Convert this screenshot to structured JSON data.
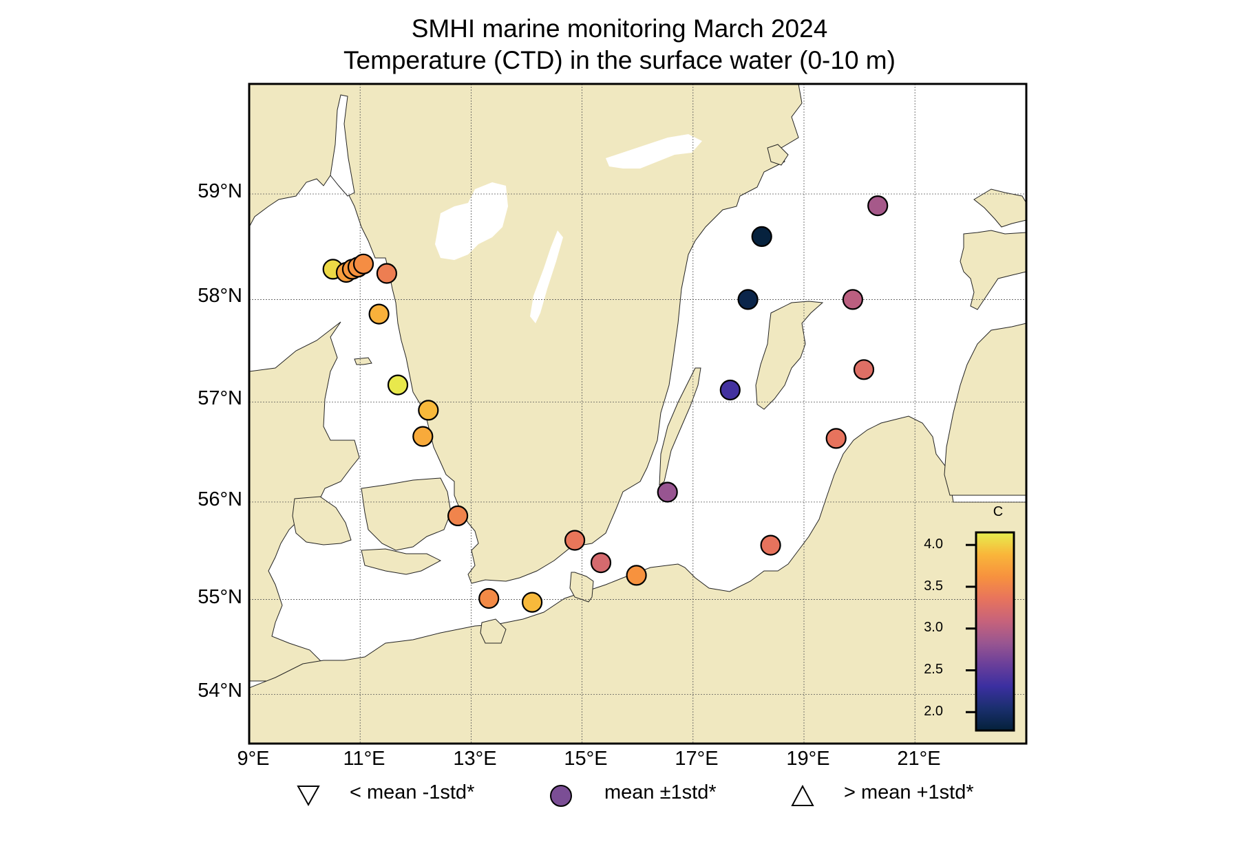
{
  "chart_data": {
    "type": "scatter",
    "title": "SMHI marine monitoring March 2024",
    "subtitle": "Temperature (CTD) in the surface water (0-10 m)",
    "xlabel": "",
    "ylabel": "",
    "xlim": [
      9,
      23.0
    ],
    "ylim": [
      53.6,
      60.0
    ],
    "x_ticks": [
      {
        "value": 9,
        "label": "9°E"
      },
      {
        "value": 11,
        "label": "11°E"
      },
      {
        "value": 13,
        "label": "13°E"
      },
      {
        "value": 15,
        "label": "15°E"
      },
      {
        "value": 17,
        "label": "17°E"
      },
      {
        "value": 19,
        "label": "19°E"
      },
      {
        "value": 21,
        "label": "21°E"
      }
    ],
    "y_ticks": [
      {
        "value": 54,
        "label": "54°N"
      },
      {
        "value": 55,
        "label": "55°N"
      },
      {
        "value": 56,
        "label": "56°N"
      },
      {
        "value": 57,
        "label": "57°N"
      },
      {
        "value": 58,
        "label": "58°N"
      },
      {
        "value": 59,
        "label": "59°N"
      }
    ],
    "grid": true,
    "colorbar": {
      "label": "C",
      "range": [
        1.78,
        4.15
      ],
      "ticks": [
        {
          "value": 4.0,
          "label": "4.0"
        },
        {
          "value": 3.5,
          "label": "3.5"
        },
        {
          "value": 3.0,
          "label": "3.0"
        },
        {
          "value": 2.5,
          "label": "2.5"
        },
        {
          "value": 2.0,
          "label": "2.0"
        }
      ],
      "colormap": [
        "#04213a",
        "#1a2f6e",
        "#3b2fa0",
        "#6a3f9a",
        "#9a5690",
        "#c8637a",
        "#e8745c",
        "#f7923e",
        "#f9b63a",
        "#e6ee4e"
      ]
    },
    "marker_type": "circle",
    "stations": [
      {
        "lon": 10.51,
        "lat": 58.29,
        "value": 4.05
      },
      {
        "lon": 10.75,
        "lat": 58.26,
        "value": 3.72
      },
      {
        "lon": 10.86,
        "lat": 58.29,
        "value": 3.66
      },
      {
        "lon": 10.96,
        "lat": 58.31,
        "value": 3.62
      },
      {
        "lon": 11.06,
        "lat": 58.34,
        "value": 3.58
      },
      {
        "lon": 11.48,
        "lat": 58.25,
        "value": 3.45
      },
      {
        "lon": 11.34,
        "lat": 57.86,
        "value": 3.85
      },
      {
        "lon": 11.68,
        "lat": 57.17,
        "value": 4.12
      },
      {
        "lon": 12.23,
        "lat": 56.92,
        "value": 3.9
      },
      {
        "lon": 12.13,
        "lat": 56.66,
        "value": 3.8
      },
      {
        "lon": 12.76,
        "lat": 55.86,
        "value": 3.5
      },
      {
        "lon": 13.32,
        "lat": 55.01,
        "value": 3.55
      },
      {
        "lon": 14.1,
        "lat": 54.97,
        "value": 3.9
      },
      {
        "lon": 14.87,
        "lat": 55.61,
        "value": 3.38
      },
      {
        "lon": 15.34,
        "lat": 55.38,
        "value": 3.2
      },
      {
        "lon": 15.98,
        "lat": 55.25,
        "value": 3.62
      },
      {
        "lon": 16.54,
        "lat": 56.1,
        "value": 2.82
      },
      {
        "lon": 17.67,
        "lat": 57.12,
        "value": 2.35
      },
      {
        "lon": 17.99,
        "lat": 58.0,
        "value": 1.86
      },
      {
        "lon": 18.24,
        "lat": 58.6,
        "value": 1.8
      },
      {
        "lon": 20.33,
        "lat": 58.89,
        "value": 2.9
      },
      {
        "lon": 19.88,
        "lat": 58.0,
        "value": 3.02
      },
      {
        "lon": 20.08,
        "lat": 57.32,
        "value": 3.28
      },
      {
        "lon": 19.58,
        "lat": 56.64,
        "value": 3.35
      },
      {
        "lon": 18.4,
        "lat": 55.56,
        "value": 3.35
      }
    ],
    "legend": {
      "placement": "bottom",
      "items": [
        {
          "symbol": "triangle-down",
          "label": "< mean -1std*"
        },
        {
          "symbol": "circle",
          "label": "mean ±1std*",
          "color": "#7b4e95"
        },
        {
          "symbol": "triangle-up",
          "label": "> mean +1std*"
        }
      ]
    },
    "colors": {
      "land": "#f0e8c0",
      "sea": "#ffffff",
      "grid": "#555555"
    }
  }
}
